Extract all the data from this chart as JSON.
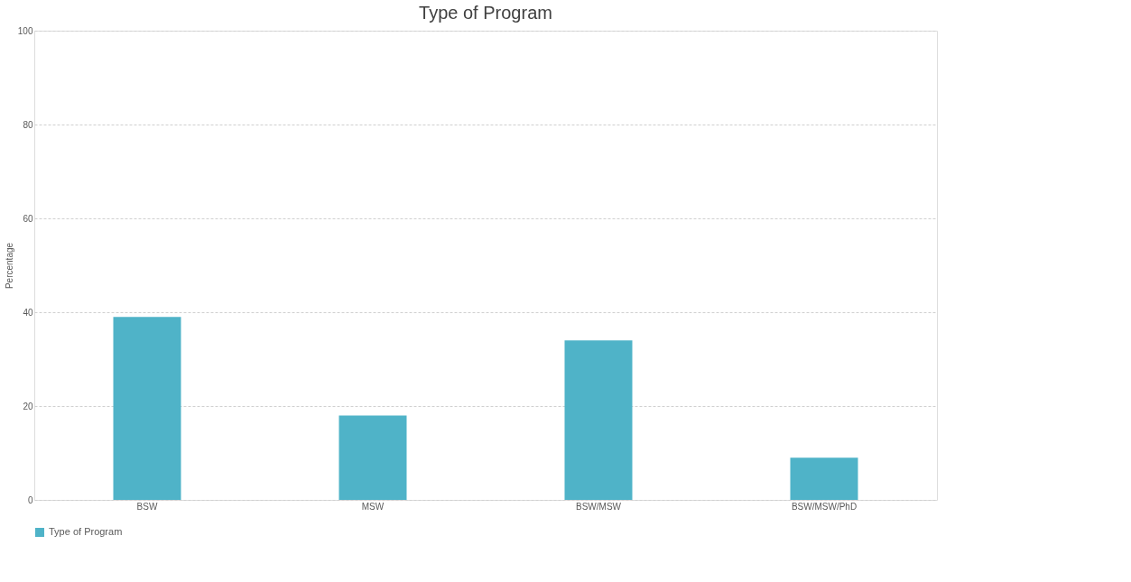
{
  "chart_data": {
    "type": "bar",
    "title": "Type of Program",
    "ylabel": "Percentage",
    "categories": [
      "BSW",
      "MSW",
      "BSW/MSW",
      "BSW/MSW/PhD"
    ],
    "series": [
      {
        "name": "Type of Program",
        "color": "#4fb3c8",
        "values": [
          39,
          18,
          34,
          9
        ]
      }
    ],
    "ylim": [
      0,
      100
    ],
    "yticks": [
      0,
      20,
      40,
      60,
      80,
      100
    ],
    "grid": "y",
    "legend": "bottom"
  }
}
